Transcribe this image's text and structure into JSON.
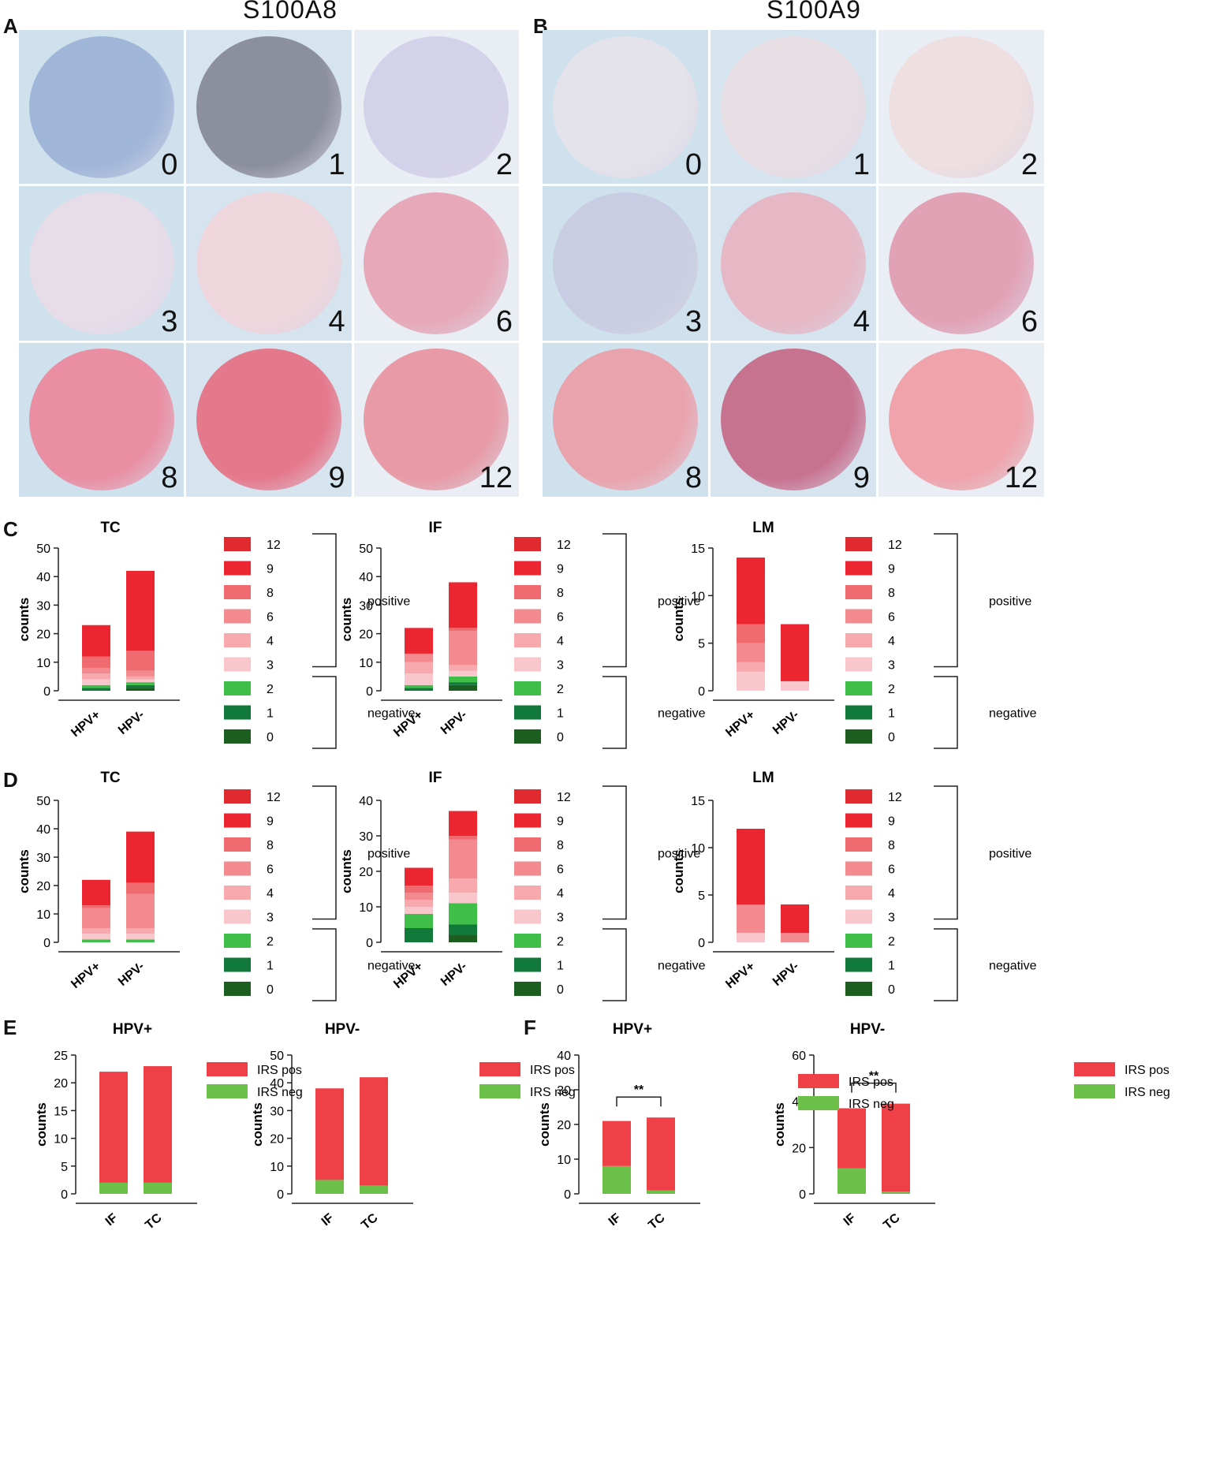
{
  "panels": {
    "A": {
      "letter": "A",
      "marker": "S100A8",
      "scores": [
        "0",
        "1",
        "2",
        "3",
        "4",
        "6",
        "8",
        "9",
        "12"
      ]
    },
    "B": {
      "letter": "B",
      "marker": "S100A9",
      "scores": [
        "0",
        "1",
        "2",
        "3",
        "4",
        "6",
        "8",
        "9",
        "12"
      ]
    },
    "C": {
      "letter": "C"
    },
    "D": {
      "letter": "D"
    },
    "E": {
      "letter": "E"
    },
    "F": {
      "letter": "F"
    }
  },
  "colors": {
    "0": "#1b5e20",
    "1": "#117a3b",
    "2": "#3fbf4a",
    "3": "#f9c7cb",
    "4": "#f7a9ae",
    "6": "#f28a8f",
    "8": "#ef6b6f",
    "9": "#eb2630",
    "12": "#e02a2f",
    "irs_pos": "#ee4046",
    "irs_neg": "#6cc04a"
  },
  "legend": {
    "levels": [
      "12",
      "9",
      "8",
      "6",
      "4",
      "3",
      "2",
      "1",
      "0"
    ],
    "positive_label": "positive",
    "negative_label": "negative"
  },
  "chart_data": [
    {
      "panel": "C",
      "title": "TC",
      "type": "bar",
      "stacked": true,
      "ylabel": "counts",
      "ylim": [
        0,
        50
      ],
      "yticks": [
        0,
        10,
        20,
        30,
        40,
        50
      ],
      "categories": [
        "HPV+",
        "HPV-"
      ],
      "series": [
        {
          "name": "0",
          "values": [
            0,
            1
          ]
        },
        {
          "name": "1",
          "values": [
            1,
            1
          ]
        },
        {
          "name": "2",
          "values": [
            1,
            1
          ]
        },
        {
          "name": "3",
          "values": [
            2,
            1
          ]
        },
        {
          "name": "4",
          "values": [
            2,
            1
          ]
        },
        {
          "name": "6",
          "values": [
            2,
            2
          ]
        },
        {
          "name": "8",
          "values": [
            4,
            7
          ]
        },
        {
          "name": "9",
          "values": [
            11,
            28
          ]
        },
        {
          "name": "12",
          "values": [
            0,
            0
          ]
        }
      ]
    },
    {
      "panel": "C",
      "title": "IF",
      "type": "bar",
      "stacked": true,
      "ylabel": "counts",
      "ylim": [
        0,
        50
      ],
      "yticks": [
        0,
        10,
        20,
        30,
        40,
        50
      ],
      "categories": [
        "HPV+",
        "HPV-"
      ],
      "series": [
        {
          "name": "0",
          "values": [
            0,
            2
          ]
        },
        {
          "name": "1",
          "values": [
            1,
            1
          ]
        },
        {
          "name": "2",
          "values": [
            1,
            2
          ]
        },
        {
          "name": "3",
          "values": [
            4,
            2
          ]
        },
        {
          "name": "4",
          "values": [
            4,
            2
          ]
        },
        {
          "name": "6",
          "values": [
            3,
            12
          ]
        },
        {
          "name": "8",
          "values": [
            0,
            1
          ]
        },
        {
          "name": "9",
          "values": [
            9,
            16
          ]
        },
        {
          "name": "12",
          "values": [
            0,
            0
          ]
        }
      ]
    },
    {
      "panel": "C",
      "title": "LM",
      "type": "bar",
      "stacked": true,
      "ylabel": "counts",
      "ylim": [
        0,
        15
      ],
      "yticks": [
        0,
        5,
        10,
        15
      ],
      "categories": [
        "HPV+",
        "HPV-"
      ],
      "series": [
        {
          "name": "0",
          "values": [
            0,
            0
          ]
        },
        {
          "name": "1",
          "values": [
            0,
            0
          ]
        },
        {
          "name": "2",
          "values": [
            0,
            0
          ]
        },
        {
          "name": "3",
          "values": [
            2,
            1
          ]
        },
        {
          "name": "4",
          "values": [
            1,
            0
          ]
        },
        {
          "name": "6",
          "values": [
            2,
            0
          ]
        },
        {
          "name": "8",
          "values": [
            2,
            0
          ]
        },
        {
          "name": "9",
          "values": [
            7,
            6
          ]
        },
        {
          "name": "12",
          "values": [
            0,
            0
          ]
        }
      ]
    },
    {
      "panel": "D",
      "title": "TC",
      "type": "bar",
      "stacked": true,
      "ylabel": "counts",
      "ylim": [
        0,
        50
      ],
      "yticks": [
        0,
        10,
        20,
        30,
        40,
        50
      ],
      "categories": [
        "HPV+",
        "HPV-"
      ],
      "series": [
        {
          "name": "0",
          "values": [
            0,
            0
          ]
        },
        {
          "name": "1",
          "values": [
            0,
            0
          ]
        },
        {
          "name": "2",
          "values": [
            1,
            1
          ]
        },
        {
          "name": "3",
          "values": [
            2,
            2
          ]
        },
        {
          "name": "4",
          "values": [
            2,
            2
          ]
        },
        {
          "name": "6",
          "values": [
            7,
            12
          ]
        },
        {
          "name": "8",
          "values": [
            1,
            4
          ]
        },
        {
          "name": "9",
          "values": [
            9,
            18
          ]
        },
        {
          "name": "12",
          "values": [
            0,
            0
          ]
        }
      ]
    },
    {
      "panel": "D",
      "title": "IF",
      "type": "bar",
      "stacked": true,
      "ylabel": "counts",
      "ylim": [
        0,
        40
      ],
      "yticks": [
        0,
        10,
        20,
        30,
        40
      ],
      "categories": [
        "HPV+",
        "HPV-"
      ],
      "series": [
        {
          "name": "0",
          "values": [
            0,
            2
          ]
        },
        {
          "name": "1",
          "values": [
            4,
            3
          ]
        },
        {
          "name": "2",
          "values": [
            4,
            6
          ]
        },
        {
          "name": "3",
          "values": [
            2,
            3
          ]
        },
        {
          "name": "4",
          "values": [
            2,
            4
          ]
        },
        {
          "name": "6",
          "values": [
            2,
            11
          ]
        },
        {
          "name": "8",
          "values": [
            2,
            1
          ]
        },
        {
          "name": "9",
          "values": [
            5,
            7
          ]
        },
        {
          "name": "12",
          "values": [
            0,
            0
          ]
        }
      ]
    },
    {
      "panel": "D",
      "title": "LM",
      "type": "bar",
      "stacked": true,
      "ylabel": "counts",
      "ylim": [
        0,
        15
      ],
      "yticks": [
        0,
        5,
        10,
        15
      ],
      "categories": [
        "HPV+",
        "HPV-"
      ],
      "series": [
        {
          "name": "0",
          "values": [
            0,
            0
          ]
        },
        {
          "name": "1",
          "values": [
            0,
            0
          ]
        },
        {
          "name": "2",
          "values": [
            0,
            0
          ]
        },
        {
          "name": "3",
          "values": [
            1,
            0
          ]
        },
        {
          "name": "4",
          "values": [
            0,
            0
          ]
        },
        {
          "name": "6",
          "values": [
            3,
            1
          ]
        },
        {
          "name": "8",
          "values": [
            0,
            0
          ]
        },
        {
          "name": "9",
          "values": [
            8,
            3
          ]
        },
        {
          "name": "12",
          "values": [
            0,
            0
          ]
        }
      ]
    },
    {
      "panel": "E",
      "title": "HPV+",
      "type": "bar",
      "stacked": true,
      "ylabel": "counts",
      "ylim": [
        0,
        25
      ],
      "yticks": [
        0,
        5,
        10,
        15,
        20,
        25
      ],
      "categories": [
        "IF",
        "TC"
      ],
      "series": [
        {
          "name": "IRS neg",
          "values": [
            2,
            2
          ]
        },
        {
          "name": "IRS pos",
          "values": [
            20,
            21
          ]
        }
      ]
    },
    {
      "panel": "E",
      "title": "HPV-",
      "type": "bar",
      "stacked": true,
      "ylabel": "counts",
      "ylim": [
        0,
        50
      ],
      "yticks": [
        0,
        10,
        20,
        30,
        40,
        50
      ],
      "categories": [
        "IF",
        "TC"
      ],
      "series": [
        {
          "name": "IRS neg",
          "values": [
            5,
            3
          ]
        },
        {
          "name": "IRS pos",
          "values": [
            33,
            39
          ]
        }
      ]
    },
    {
      "panel": "F",
      "title": "HPV+",
      "type": "bar",
      "stacked": true,
      "ylabel": "counts",
      "ylim": [
        0,
        40
      ],
      "yticks": [
        0,
        10,
        20,
        30,
        40
      ],
      "categories": [
        "IF",
        "TC"
      ],
      "significance": "**",
      "series": [
        {
          "name": "IRS neg",
          "values": [
            8,
            1
          ]
        },
        {
          "name": "IRS pos",
          "values": [
            13,
            21
          ]
        }
      ]
    },
    {
      "panel": "F",
      "title": "HPV-",
      "type": "bar",
      "stacked": true,
      "ylabel": "counts",
      "ylim": [
        0,
        60
      ],
      "yticks": [
        0,
        20,
        40,
        60
      ],
      "categories": [
        "IF",
        "TC"
      ],
      "significance": "**",
      "series": [
        {
          "name": "IRS neg",
          "values": [
            11,
            1
          ]
        },
        {
          "name": "IRS pos",
          "values": [
            26,
            38
          ]
        }
      ]
    }
  ]
}
